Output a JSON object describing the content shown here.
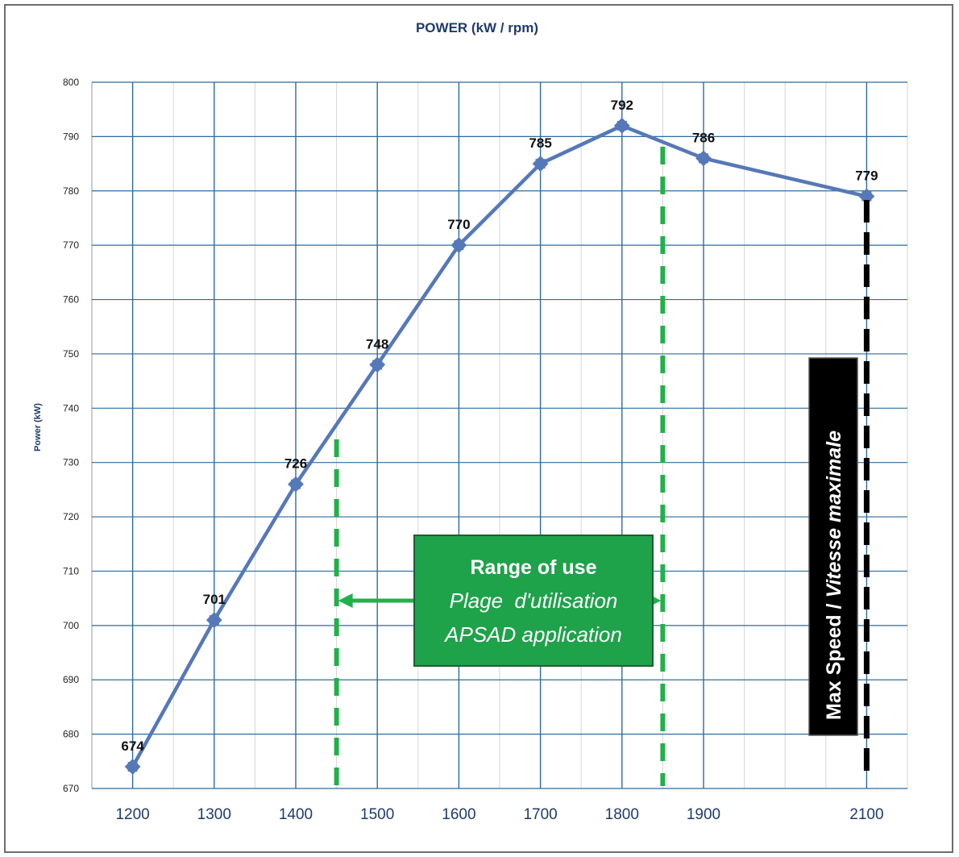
{
  "chart_data": {
    "type": "line",
    "title": "POWER (kW / rpm)",
    "ylabel": "Power (kW)",
    "xlabel": "",
    "x": [
      1200,
      1300,
      1400,
      1500,
      1600,
      1700,
      1800,
      1900,
      2100
    ],
    "x_ticks": [
      1200,
      1300,
      1400,
      1500,
      1600,
      1700,
      1800,
      1900,
      2100
    ],
    "ylim": [
      670,
      800
    ],
    "y_ticks": [
      670,
      680,
      690,
      700,
      710,
      720,
      730,
      740,
      750,
      760,
      770,
      780,
      790,
      800
    ],
    "series": [
      {
        "values": [
          674,
          701,
          726,
          748,
          770,
          785,
          792,
          786,
          779
        ]
      }
    ],
    "data_labels": [
      "674",
      "701",
      "726",
      "748",
      "770",
      "785",
      "792",
      "786",
      "779"
    ],
    "grid": true,
    "range_of_use": {
      "x_start": 1450,
      "x_end": 1850,
      "line1": "Range of use",
      "line2": "Plage  d'utilisation",
      "line3": "APSAD application"
    },
    "max_speed": {
      "x": 2100,
      "label_en": "Max Speed /",
      "label_fr": "Vitesse maximale"
    },
    "colors": {
      "series": "#5578b8",
      "grid": "#2e6b9e",
      "range": "#22b04b",
      "range_box": "#1ea24a",
      "max_speed": "#000000",
      "title": "#1f3b6b"
    }
  }
}
